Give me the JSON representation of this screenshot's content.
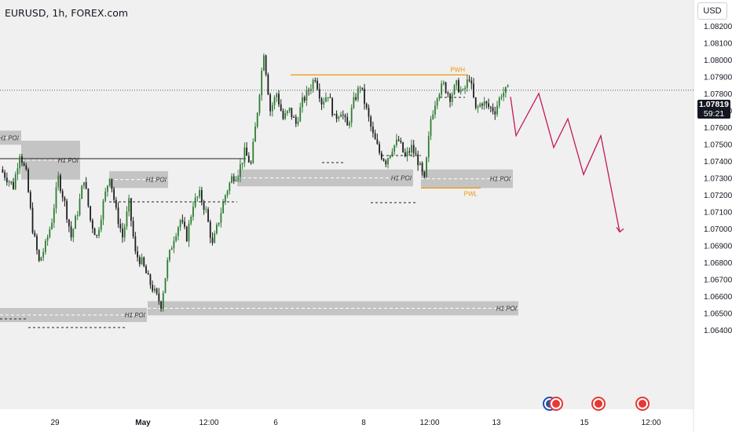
{
  "header": {
    "title": "EURUSD, 1h, FOREX.com",
    "currency": "USD"
  },
  "price_scale": {
    "current_price": "1.07819",
    "countdown": "59:21"
  },
  "events": [
    {
      "name": "flag-eu-icon",
      "label": "EU event"
    },
    {
      "name": "flag-us-icon",
      "label": "US event"
    }
  ],
  "chart_data": {
    "type": "candlestick",
    "title": "EURUSD, 1h, FOREX.com",
    "y_axis": {
      "ticks": [
        "1.08200",
        "1.08100",
        "1.08000",
        "1.07900",
        "1.07800",
        "1.07700",
        "1.07600",
        "1.07500",
        "1.07400",
        "1.07300",
        "1.07200",
        "1.07100",
        "1.07000",
        "1.06900",
        "1.06800",
        "1.06700",
        "1.06600",
        "1.06500",
        "1.06400"
      ],
      "range": [
        1.0637,
        1.083
      ]
    },
    "x_axis": {
      "ticks": [
        "29",
        "May",
        "12:00",
        "6",
        "8",
        "12:00",
        "13",
        "15",
        "12:00"
      ]
    },
    "price_path": [
      1.0735,
      1.073,
      1.0725,
      1.0745,
      1.0732,
      1.07,
      1.068,
      1.069,
      1.0705,
      1.073,
      1.0715,
      1.0695,
      1.071,
      1.073,
      1.0705,
      1.0695,
      1.0715,
      1.0732,
      1.071,
      1.0695,
      1.0715,
      1.0685,
      1.068,
      1.067,
      1.0662,
      1.0655,
      1.068,
      1.0695,
      1.0705,
      1.0695,
      1.0715,
      1.072,
      1.071,
      1.069,
      1.0705,
      1.072,
      1.073,
      1.0733,
      1.0745,
      1.0738,
      1.077,
      1.0805,
      1.077,
      1.078,
      1.0765,
      1.077,
      1.0762,
      1.0775,
      1.0782,
      1.079,
      1.0775,
      1.078,
      1.0765,
      1.077,
      1.076,
      1.0775,
      1.0785,
      1.077,
      1.0755,
      1.0745,
      1.074,
      1.0748,
      1.0752,
      1.0742,
      1.0748,
      1.074,
      1.0728,
      1.0765,
      1.078,
      1.0785,
      1.0778,
      1.0785,
      1.078,
      1.079,
      1.077,
      1.0775,
      1.0772,
      1.077,
      1.078,
      1.0782
    ],
    "current_price": 1.07819,
    "levels": [
      {
        "label": "PWH",
        "value": 1.0791,
        "color": "#f0950c"
      },
      {
        "label": "PWL",
        "value": 1.0724,
        "color": "#f0950c"
      }
    ],
    "zones": [
      {
        "label": "H1 POI",
        "top": 1.0752,
        "bottom": 1.0729
      },
      {
        "label": "H1 POI",
        "top": 1.0734,
        "bottom": 1.0724
      },
      {
        "label": "H1 POI",
        "top": 1.0735,
        "bottom": 1.0725
      },
      {
        "label": "H1 POI",
        "top": 1.0735,
        "bottom": 1.0724
      },
      {
        "label": "H1 POI",
        "top": 1.0657,
        "bottom": 1.0655
      },
      {
        "label": "H1 POI",
        "top": 1.0653,
        "bottom": 1.0647
      },
      {
        "label": "H1 POI",
        "top": 1.0758,
        "bottom": 1.0751
      }
    ],
    "projection": {
      "color": "#c2185b",
      "values": [
        1.0778,
        1.0755,
        1.078,
        1.0748,
        1.0765,
        1.0732,
        1.0755,
        1.0698
      ]
    }
  }
}
